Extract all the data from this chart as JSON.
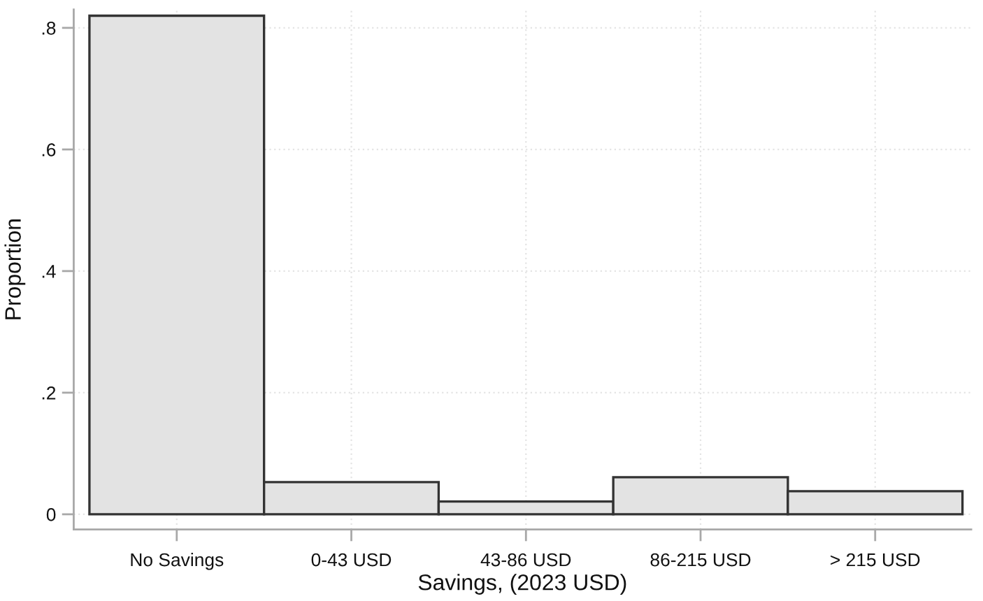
{
  "chart_data": {
    "type": "bar",
    "categories": [
      "No Savings",
      "0-43 USD",
      "43-86 USD",
      "86-215 USD",
      "> 215 USD"
    ],
    "values": [
      0.82,
      0.053,
      0.021,
      0.061,
      0.038
    ],
    "color": "#e3e3e3",
    "xlabel": "Savings, (2023 USD)",
    "ylabel": "Proportion",
    "ylim": [
      -0.025,
      0.83
    ],
    "yticks": [
      0,
      {
        "value": 0.2,
        "label": ".2"
      },
      {
        "value": 0.4,
        "label": ".4"
      },
      {
        "value": 0.6,
        "label": ".6"
      },
      {
        "value": 0.8,
        "label": ".8"
      }
    ],
    "grid": true
  }
}
